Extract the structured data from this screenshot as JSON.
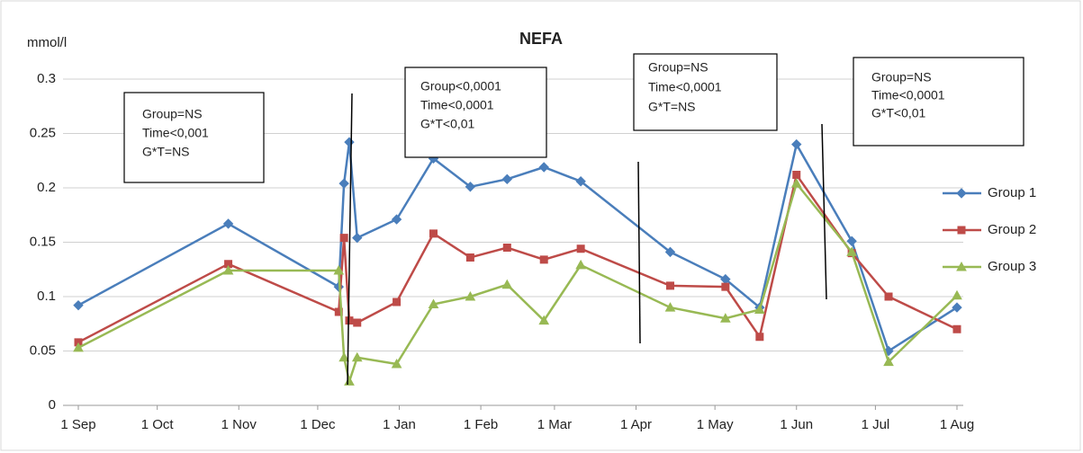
{
  "chart_data": {
    "type": "line",
    "title": "NEFA",
    "y_label": "mmol/l",
    "x": [
      "1 Sep",
      "28 Oct",
      "9 Dec",
      "11 Dec",
      "13 Dec",
      "16 Dec",
      "31 Dec",
      "14 Jan",
      "28 Jan",
      "11 Feb",
      "25 Feb",
      "11 Mar",
      "14 Apr",
      "5 May",
      "18 May",
      "1 Jun",
      "22 Jun",
      "6 Jul",
      "1 Aug"
    ],
    "series": [
      {
        "name": "Group 1",
        "color": "#4a7ebb",
        "marker": "diamond",
        "values": [
          0.092,
          0.167,
          0.109,
          0.204,
          0.242,
          0.154,
          0.171,
          0.227,
          0.201,
          0.208,
          0.219,
          0.206,
          0.141,
          0.116,
          0.09,
          0.24,
          0.151,
          0.05,
          0.09
        ]
      },
      {
        "name": "Group 2",
        "color": "#be4b48",
        "marker": "square",
        "values": [
          0.058,
          0.13,
          0.086,
          0.154,
          0.078,
          0.076,
          0.095,
          0.158,
          0.136,
          0.145,
          0.134,
          0.144,
          0.11,
          0.109,
          0.063,
          0.212,
          0.14,
          0.1,
          0.07
        ]
      },
      {
        "name": "Group 3",
        "color": "#98b954",
        "marker": "triangle",
        "values": [
          0.053,
          0.124,
          0.124,
          0.044,
          0.022,
          0.044,
          0.038,
          0.093,
          0.1,
          0.111,
          0.078,
          0.129,
          0.09,
          0.08,
          0.088,
          0.204,
          0.141,
          0.04,
          0.101
        ]
      }
    ],
    "xlim": [
      "1 Sep",
      "1 Aug"
    ],
    "xticks": [
      "1 Sep",
      "1 Oct",
      "1 Nov",
      "1 Dec",
      "1 Jan",
      "1 Feb",
      "1 Mar",
      "1 Apr",
      "1 May",
      "1 Jun",
      "1 Jul",
      "1 Aug"
    ],
    "ylim": [
      0,
      0.3
    ],
    "yticks": [
      0,
      0.05,
      0.1,
      0.15,
      0.2,
      0.25,
      0.3
    ],
    "grid": true,
    "legend": "right",
    "annotations": [
      [
        "Group=NS",
        "Time<0,001",
        "G*T=NS"
      ],
      [
        "Group<0,0001",
        "Time<0,0001",
        "G*T<0,01"
      ],
      [
        "Group=NS",
        "Time<0,0001",
        "G*T=NS"
      ],
      [
        "Group=NS",
        "Time<0,0001",
        "G*T<0,01"
      ]
    ]
  }
}
